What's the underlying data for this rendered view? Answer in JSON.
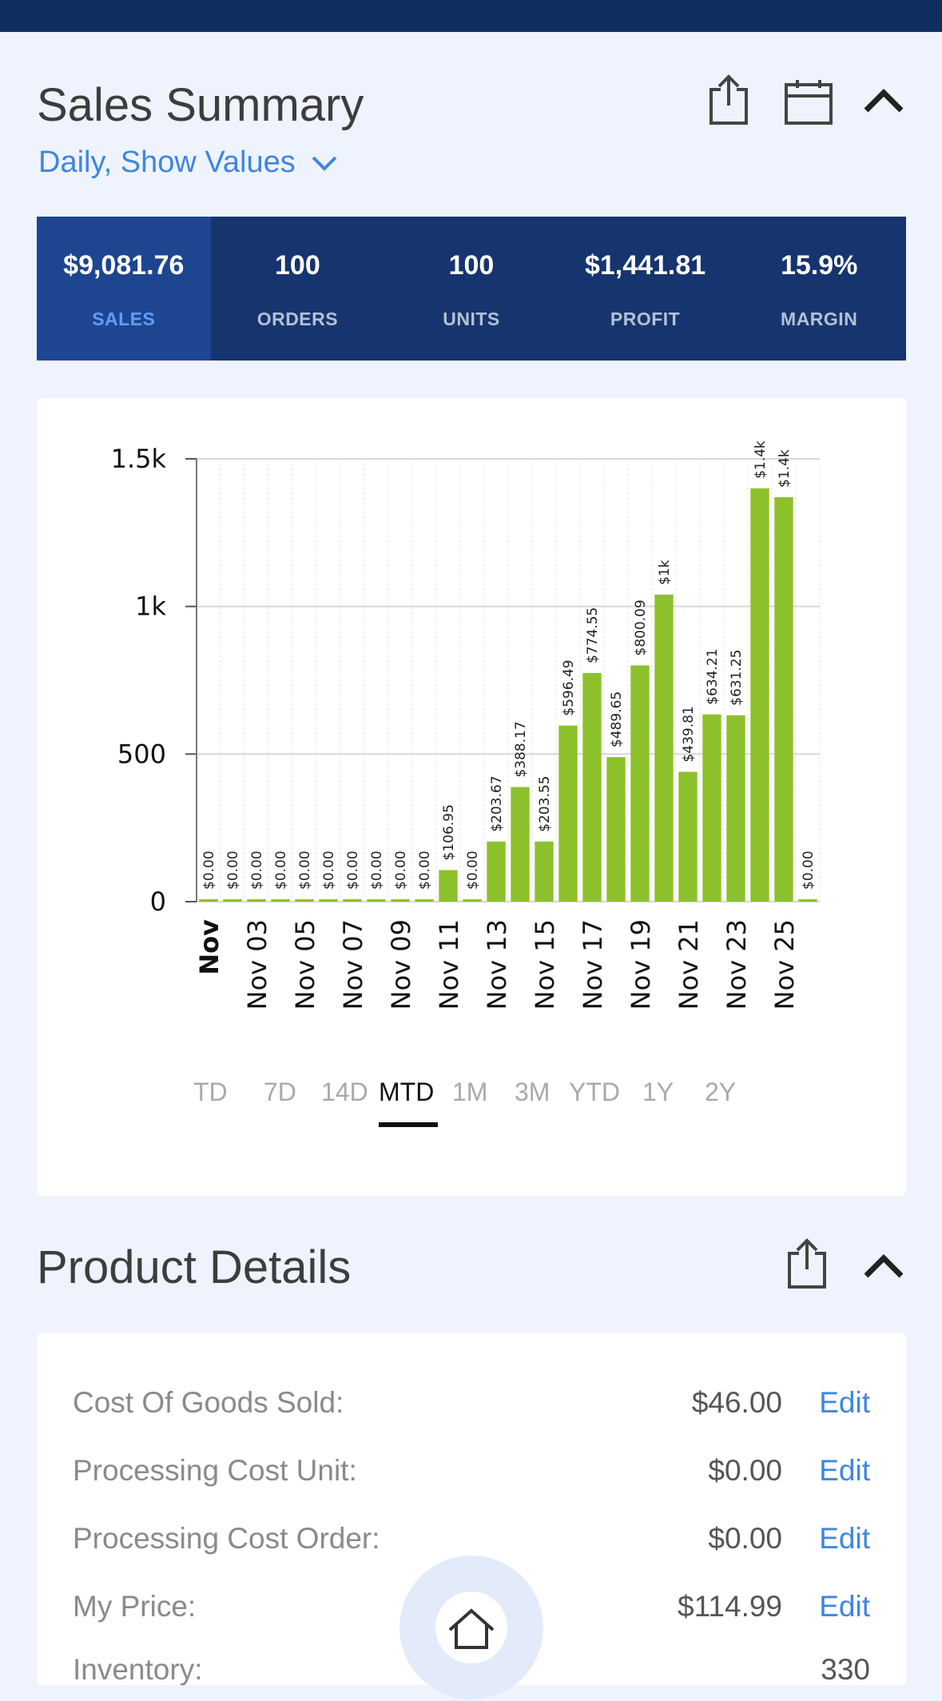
{
  "sales_summary": {
    "title": "Sales Summary",
    "period_label": "Daily, Show Values",
    "stats": [
      {
        "value": "$9,081.76",
        "label": "SALES"
      },
      {
        "value": "100",
        "label": "ORDERS"
      },
      {
        "value": "100",
        "label": "UNITS"
      },
      {
        "value": "$1,441.81",
        "label": "PROFIT"
      },
      {
        "value": "15.9%",
        "label": "MARGIN"
      }
    ],
    "active_stat": "SALES"
  },
  "chart_data": {
    "type": "bar",
    "bar_color": "#8dc12b",
    "categories": [
      "Nov",
      "Nov 02",
      "Nov 03",
      "Nov 04",
      "Nov 05",
      "Nov 06",
      "Nov 07",
      "Nov 08",
      "Nov 09",
      "Nov 10",
      "Nov 11",
      "Nov 12",
      "Nov 13",
      "Nov 14",
      "Nov 15",
      "Nov 16",
      "Nov 17",
      "Nov 18",
      "Nov 19",
      "Nov 20",
      "Nov 21",
      "Nov 22",
      "Nov 23",
      "Nov 24",
      "Nov 25",
      "Nov 26"
    ],
    "x_tick_labels": [
      "Nov",
      "Nov 03",
      "Nov 05",
      "Nov 07",
      "Nov 09",
      "Nov 11",
      "Nov 13",
      "Nov 15",
      "Nov 17",
      "Nov 19",
      "Nov 21",
      "Nov 23",
      "Nov 25"
    ],
    "values": [
      0,
      0,
      0,
      0,
      0,
      0,
      0,
      0,
      0,
      0,
      106.95,
      0,
      203.67,
      388.17,
      203.55,
      596.49,
      774.55,
      489.65,
      800.09,
      1040,
      439.81,
      634.21,
      631.25,
      1400,
      1370,
      0
    ],
    "value_labels": [
      "$0.00",
      "$0.00",
      "$0.00",
      "$0.00",
      "$0.00",
      "$0.00",
      "$0.00",
      "$0.00",
      "$0.00",
      "$0.00",
      "$106.95",
      "$0.00",
      "$203.67",
      "$388.17",
      "$203.55",
      "$596.49",
      "$774.55",
      "$489.65",
      "$800.09",
      "$1k",
      "$439.81",
      "$634.21",
      "$631.25",
      "$1.4k",
      "$1.4k",
      "$0.00"
    ],
    "y_ticks": [
      0,
      500,
      1000,
      1500
    ],
    "y_tick_labels": [
      "0",
      "500",
      "1k",
      "1.5k"
    ],
    "ylim": [
      0,
      1500
    ],
    "grid": true,
    "title": "",
    "xlabel": "",
    "ylabel": ""
  },
  "range_tabs": [
    "TD",
    "7D",
    "14D",
    "MTD",
    "1M",
    "3M",
    "YTD",
    "1Y",
    "2Y"
  ],
  "active_range": "MTD",
  "product_details": {
    "title": "Product Details",
    "edit_label": "Edit",
    "rows": [
      {
        "label": "Cost Of Goods Sold:",
        "value": "$46.00"
      },
      {
        "label": "Processing Cost Unit:",
        "value": "$0.00"
      },
      {
        "label": "Processing Cost Order:",
        "value": "$0.00"
      },
      {
        "label": "My Price:",
        "value": "$114.99"
      },
      {
        "label": "Inventory:",
        "value": "330"
      }
    ]
  },
  "icons": {
    "share": "share-icon",
    "calendar": "calendar-icon",
    "collapse": "chevron-up-icon",
    "dropdown": "chevron-down-icon",
    "home": "home-icon"
  }
}
